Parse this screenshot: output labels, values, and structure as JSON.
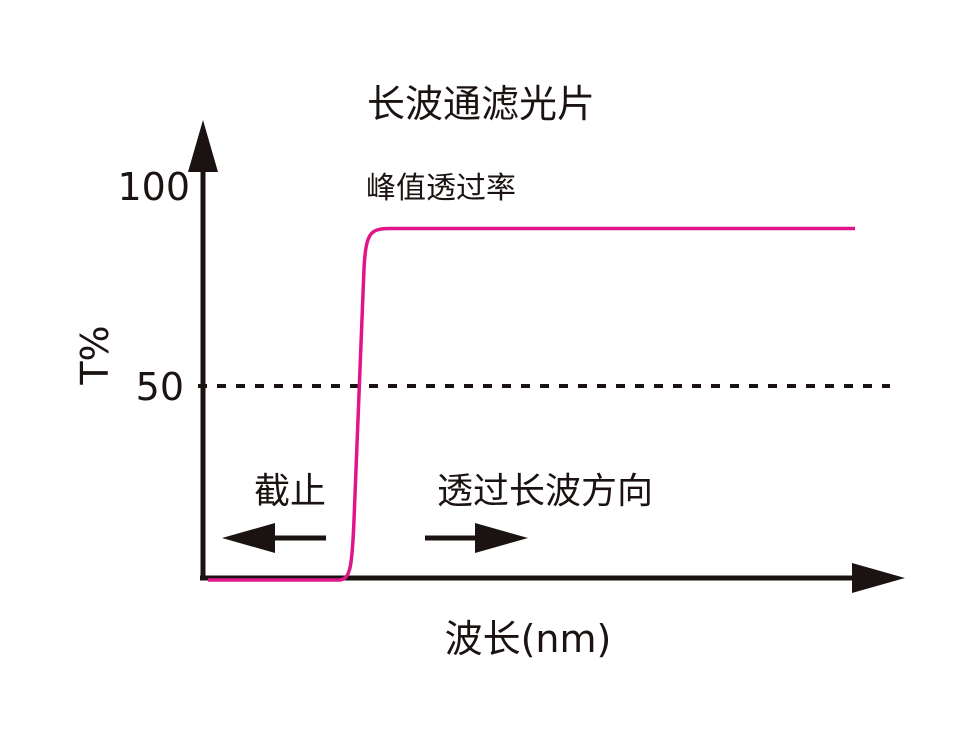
{
  "chart_data": {
    "type": "line",
    "title": "长波通滤光片",
    "xlabel": "波长(nm)",
    "ylabel": "T%",
    "ylim": [
      0,
      100
    ],
    "yticks": [
      "100",
      "50"
    ],
    "reference_line": {
      "value": 50,
      "style": "dotted"
    },
    "series": [
      {
        "color": "#e0158a",
        "cutoff_level": 0,
        "peak_level": 91
      }
    ],
    "annotations": {
      "peak": "峰值透过率",
      "cutoff": "截止",
      "pass": "透过长波方向"
    },
    "axis_color": "#1a1311",
    "grid": false
  }
}
